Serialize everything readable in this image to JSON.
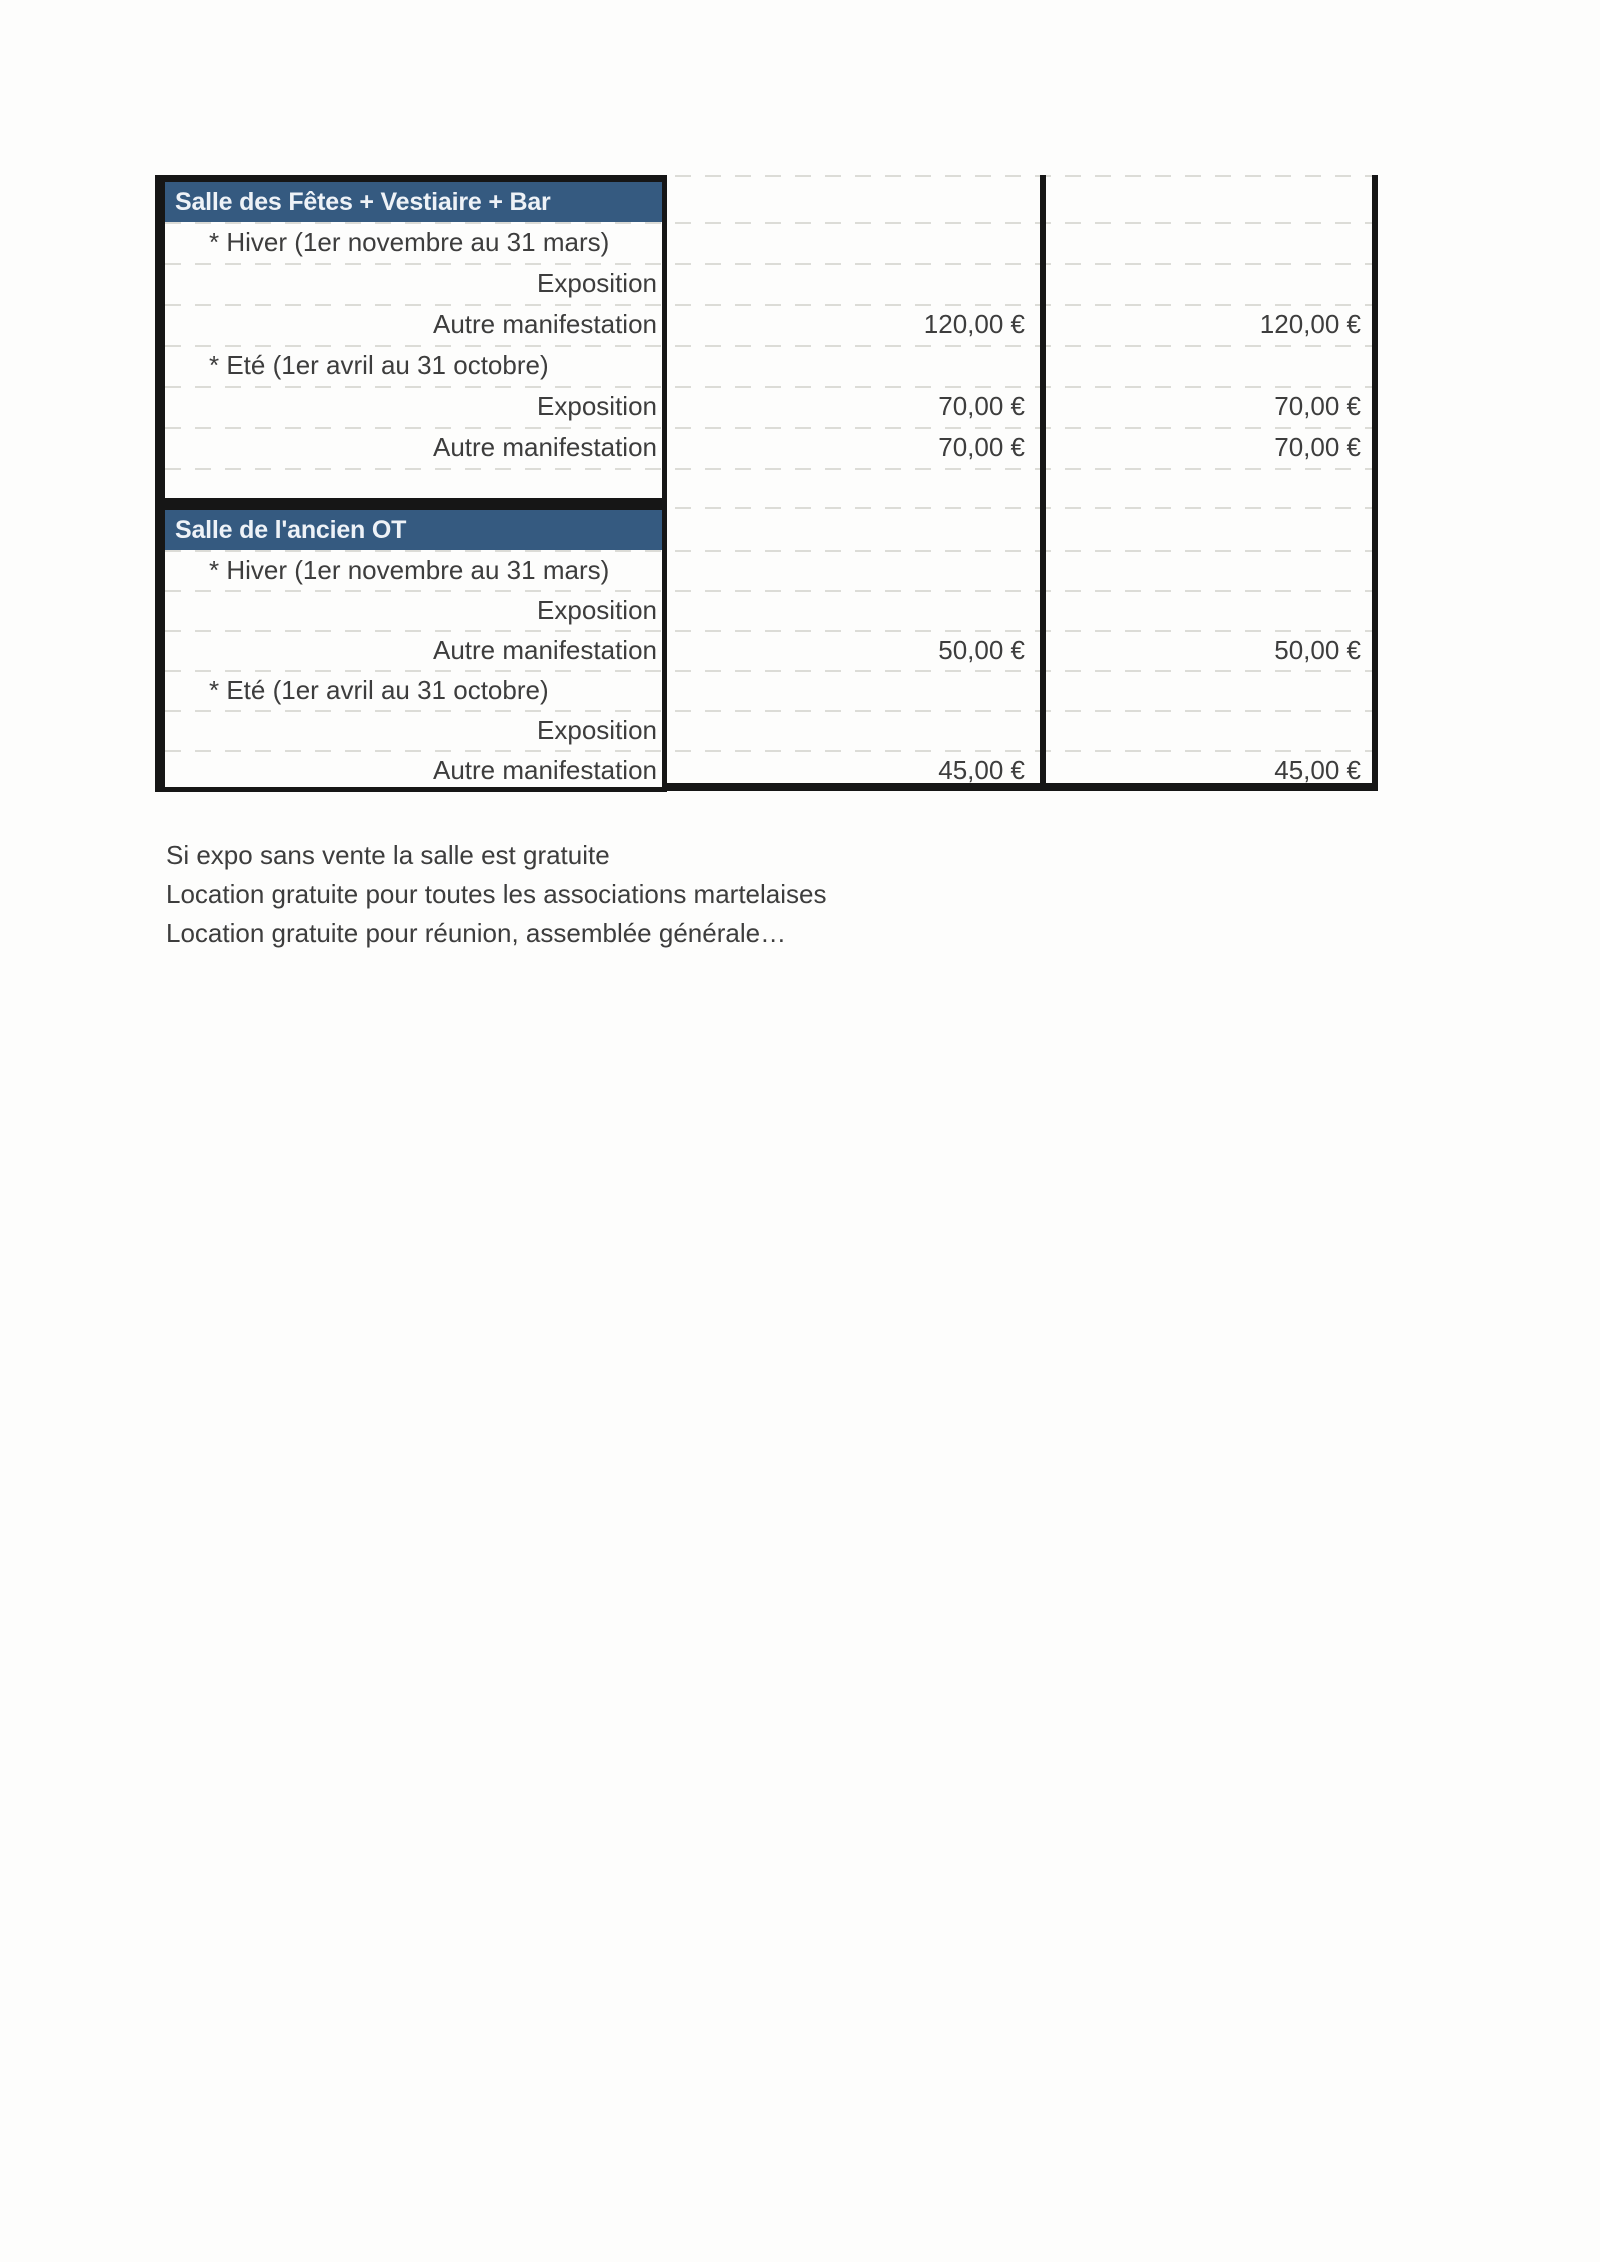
{
  "document": {
    "sections": [
      {
        "title": "Salle des Fêtes + Vestiaire + Bar",
        "rows": [
          {
            "type": "season",
            "label": "* Hiver (1er novembre au 31 mars)",
            "col2": "",
            "col3": ""
          },
          {
            "type": "item",
            "label": "Exposition",
            "col2": "",
            "col3": ""
          },
          {
            "type": "item",
            "label": "Autre manifestation",
            "col2": "120,00 €",
            "col3": "120,00 €"
          },
          {
            "type": "season",
            "label": "* Eté (1er avril au 31 octobre)",
            "col2": "",
            "col3": ""
          },
          {
            "type": "item",
            "label": "Exposition",
            "col2": "70,00 €",
            "col3": "70,00 €"
          },
          {
            "type": "item",
            "label": "Autre manifestation",
            "col2": "70,00 €",
            "col3": "70,00 €"
          }
        ]
      },
      {
        "title": "Salle de l'ancien OT",
        "rows": [
          {
            "type": "season",
            "label": "* Hiver (1er novembre au 31 mars)",
            "col2": "",
            "col3": ""
          },
          {
            "type": "item",
            "label": "Exposition",
            "col2": "",
            "col3": ""
          },
          {
            "type": "item",
            "label": "Autre manifestation",
            "col2": "50,00 €",
            "col3": "50,00 €"
          },
          {
            "type": "season",
            "label": "* Eté (1er avril au 31 octobre)",
            "col2": "",
            "col3": ""
          },
          {
            "type": "item",
            "label": "Exposition",
            "col2": "",
            "col3": ""
          },
          {
            "type": "item",
            "label": "Autre manifestation",
            "col2": "45,00 €",
            "col3": "45,00 €"
          }
        ]
      }
    ],
    "notes": [
      "Si expo sans vente la salle est gratuite",
      "Location gratuite pour toutes les associations martelaises",
      "Location gratuite pour réunion, assemblée générale…"
    ],
    "colors": {
      "header_bg": "#355a80",
      "header_text": "#eef2f7",
      "body_text": "#3d3d3d",
      "border": "#161616",
      "faint_line": "#dcdcd7"
    }
  }
}
